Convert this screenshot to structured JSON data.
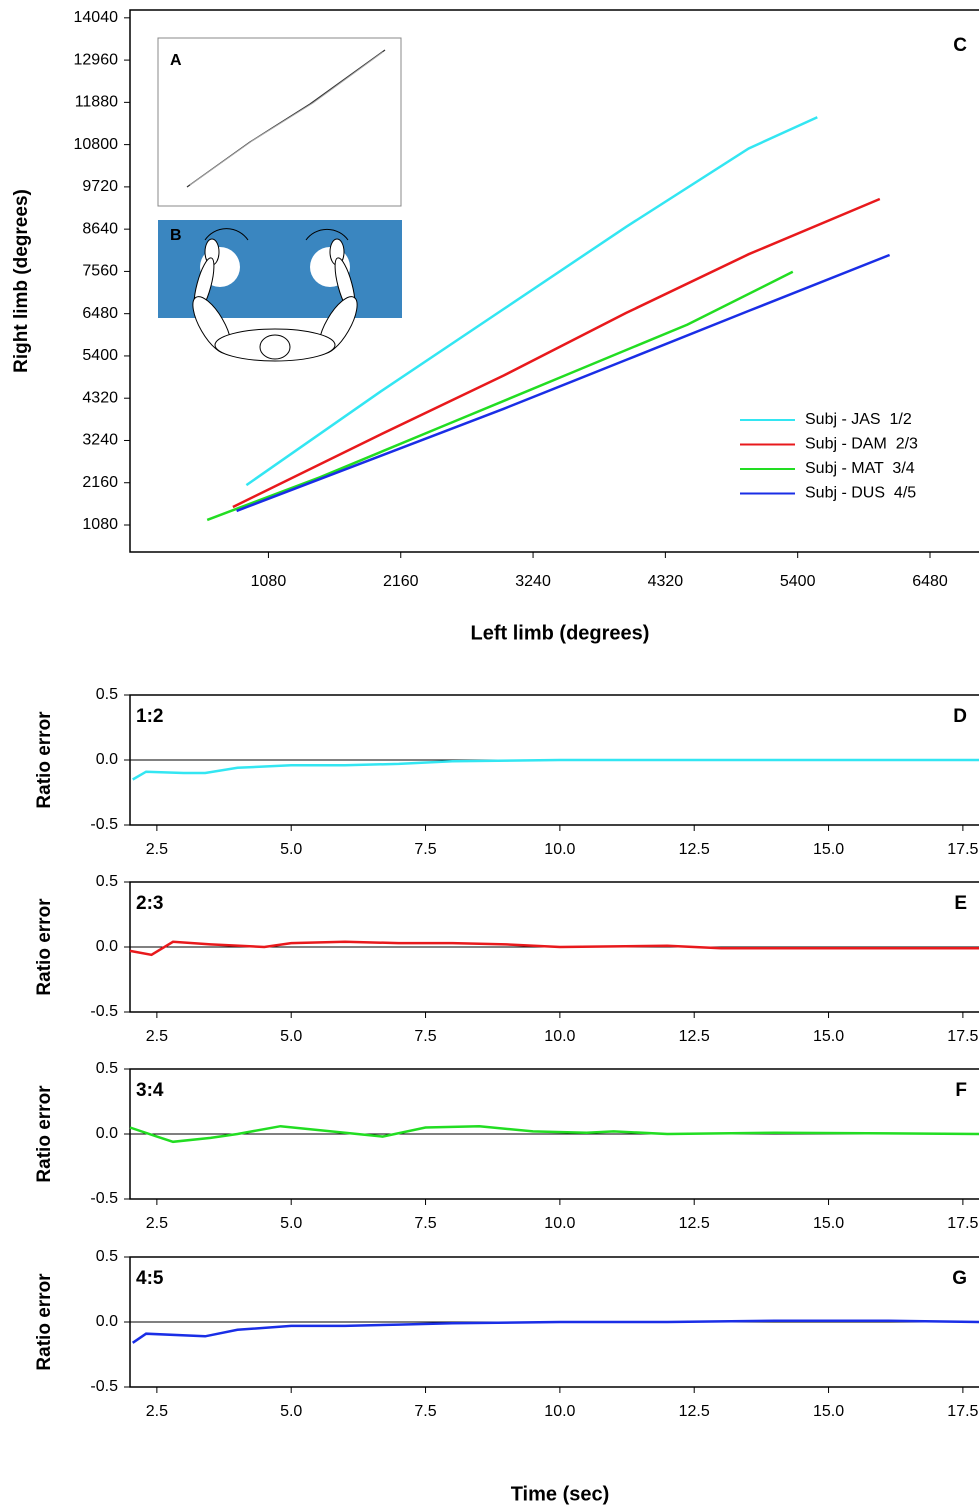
{
  "chart_data": [
    {
      "type": "line",
      "corner_label": "C",
      "inset_labels": [
        "A",
        "B"
      ],
      "x_label": "Left limb (degrees)",
      "y_label": "Right limb (degrees)",
      "xlim": [
        -50,
        6880
      ],
      "ylim": [
        390,
        14240
      ],
      "xticks": [
        1080,
        2160,
        3240,
        4320,
        5400,
        6480
      ],
      "yticks": [
        1080,
        2160,
        3240,
        4320,
        5400,
        6480,
        7560,
        8640,
        9720,
        10800,
        11880,
        12960,
        14040
      ],
      "series": [
        {
          "name": "Subj - JAS  1/2",
          "color": "#33e6f2",
          "x": [
            900,
            2000,
            3000,
            4000,
            5000,
            5560
          ],
          "values": [
            2100,
            4500,
            6600,
            8700,
            10700,
            11500
          ]
        },
        {
          "name": "Subj - DAM  2/3",
          "color": "#e8191c",
          "x": [
            790,
            2000,
            3000,
            4000,
            5000,
            6070
          ],
          "values": [
            1540,
            3400,
            4900,
            6500,
            8000,
            9410
          ]
        },
        {
          "name": "Subj - MAT  3/4",
          "color": "#22dd22",
          "x": [
            580,
            1500,
            2500,
            3500,
            4500,
            5360
          ],
          "values": [
            1210,
            2300,
            3600,
            4900,
            6200,
            7550
          ]
        },
        {
          "name": "Subj - DUS  4/5",
          "color": "#1a2ee6",
          "x": [
            820,
            2000,
            3000,
            4000,
            5000,
            6150
          ],
          "values": [
            1440,
            2850,
            4050,
            5300,
            6550,
            7980
          ]
        }
      ]
    },
    {
      "type": "line",
      "panel_label": "1:2",
      "corner_label": "D",
      "y_label": "Ratio error",
      "zero_line": true,
      "xlim": [
        2.0,
        17.8
      ],
      "ylim": [
        -0.5,
        0.5
      ],
      "xticks": [
        2.5,
        {
          "value": 5,
          "label": "5.0"
        },
        7.5,
        {
          "value": 10,
          "label": "10.0"
        },
        12.5,
        {
          "value": 15,
          "label": "15.0"
        },
        17.5
      ],
      "yticks": [
        {
          "value": 0.5,
          "label": "0.5"
        },
        {
          "value": 0,
          "label": "0.0"
        },
        {
          "value": -0.5,
          "label": "-0.5"
        }
      ],
      "x": [
        2.05,
        2.3,
        3.0,
        3.4,
        4,
        5,
        6,
        7,
        8,
        10,
        12,
        14,
        16,
        17.8
      ],
      "series": [
        {
          "color": "#33e6f2",
          "values": [
            -0.15,
            -0.09,
            -0.1,
            -0.1,
            -0.06,
            -0.04,
            -0.04,
            -0.03,
            -0.01,
            0,
            0,
            0,
            0,
            0
          ]
        }
      ]
    },
    {
      "type": "line",
      "panel_label": "2:3",
      "corner_label": "E",
      "y_label": "Ratio error",
      "zero_line": true,
      "xlim": [
        2.0,
        17.8
      ],
      "ylim": [
        -0.5,
        0.5
      ],
      "xticks": [
        2.5,
        {
          "value": 5,
          "label": "5.0"
        },
        7.5,
        {
          "value": 10,
          "label": "10.0"
        },
        12.5,
        {
          "value": 15,
          "label": "15.0"
        },
        17.5
      ],
      "yticks": [
        {
          "value": 0.5,
          "label": "0.5"
        },
        {
          "value": 0,
          "label": "0.0"
        },
        {
          "value": -0.5,
          "label": "-0.5"
        }
      ],
      "x": [
        2.0,
        2.4,
        2.8,
        3.5,
        4.5,
        5,
        6,
        7,
        8,
        9,
        10,
        12,
        13,
        15,
        17.8
      ],
      "series": [
        {
          "color": "#e8191c",
          "values": [
            -0.03,
            -0.06,
            0.04,
            0.02,
            0,
            0.03,
            0.04,
            0.03,
            0.03,
            0.02,
            0,
            0.01,
            -0.01,
            -0.01,
            -0.01
          ]
        }
      ]
    },
    {
      "type": "line",
      "panel_label": "3:4",
      "corner_label": "F",
      "y_label": "Ratio error",
      "zero_line": true,
      "xlim": [
        2.0,
        17.8
      ],
      "ylim": [
        -0.5,
        0.5
      ],
      "xticks": [
        2.5,
        {
          "value": 5,
          "label": "5.0"
        },
        7.5,
        {
          "value": 10,
          "label": "10.0"
        },
        12.5,
        {
          "value": 15,
          "label": "15.0"
        },
        17.5
      ],
      "yticks": [
        {
          "value": 0.5,
          "label": "0.5"
        },
        {
          "value": 0,
          "label": "0.0"
        },
        {
          "value": -0.5,
          "label": "-0.5"
        }
      ],
      "x": [
        2.0,
        2.5,
        2.8,
        3.5,
        4,
        4.8,
        6,
        6.7,
        7.5,
        8.5,
        9.5,
        10.5,
        11,
        12,
        14,
        17.8
      ],
      "series": [
        {
          "color": "#22dd22",
          "values": [
            0.05,
            -0.02,
            -0.06,
            -0.03,
            0,
            0.06,
            0.01,
            -0.02,
            0.05,
            0.06,
            0.02,
            0.01,
            0.02,
            0,
            0.01,
            0
          ]
        }
      ]
    },
    {
      "type": "line",
      "panel_label": "4:5",
      "corner_label": "G",
      "y_label": "Ratio error",
      "zero_line": true,
      "x_label": "Time (sec)",
      "xlim": [
        2.0,
        17.8
      ],
      "ylim": [
        -0.5,
        0.5
      ],
      "xticks": [
        2.5,
        {
          "value": 5,
          "label": "5.0"
        },
        7.5,
        {
          "value": 10,
          "label": "10.0"
        },
        12.5,
        {
          "value": 15,
          "label": "15.0"
        },
        17.5
      ],
      "yticks": [
        {
          "value": 0.5,
          "label": "0.5"
        },
        {
          "value": 0,
          "label": "0.0"
        },
        {
          "value": -0.5,
          "label": "-0.5"
        }
      ],
      "x": [
        2.05,
        2.3,
        3.4,
        4,
        5,
        6,
        7,
        8,
        10,
        12,
        14,
        16,
        17.8
      ],
      "series": [
        {
          "color": "#1a2ee6",
          "values": [
            -0.16,
            -0.09,
            -0.11,
            -0.06,
            -0.03,
            -0.03,
            -0.02,
            -0.01,
            0,
            0,
            0.01,
            0.01,
            0
          ]
        }
      ]
    }
  ]
}
